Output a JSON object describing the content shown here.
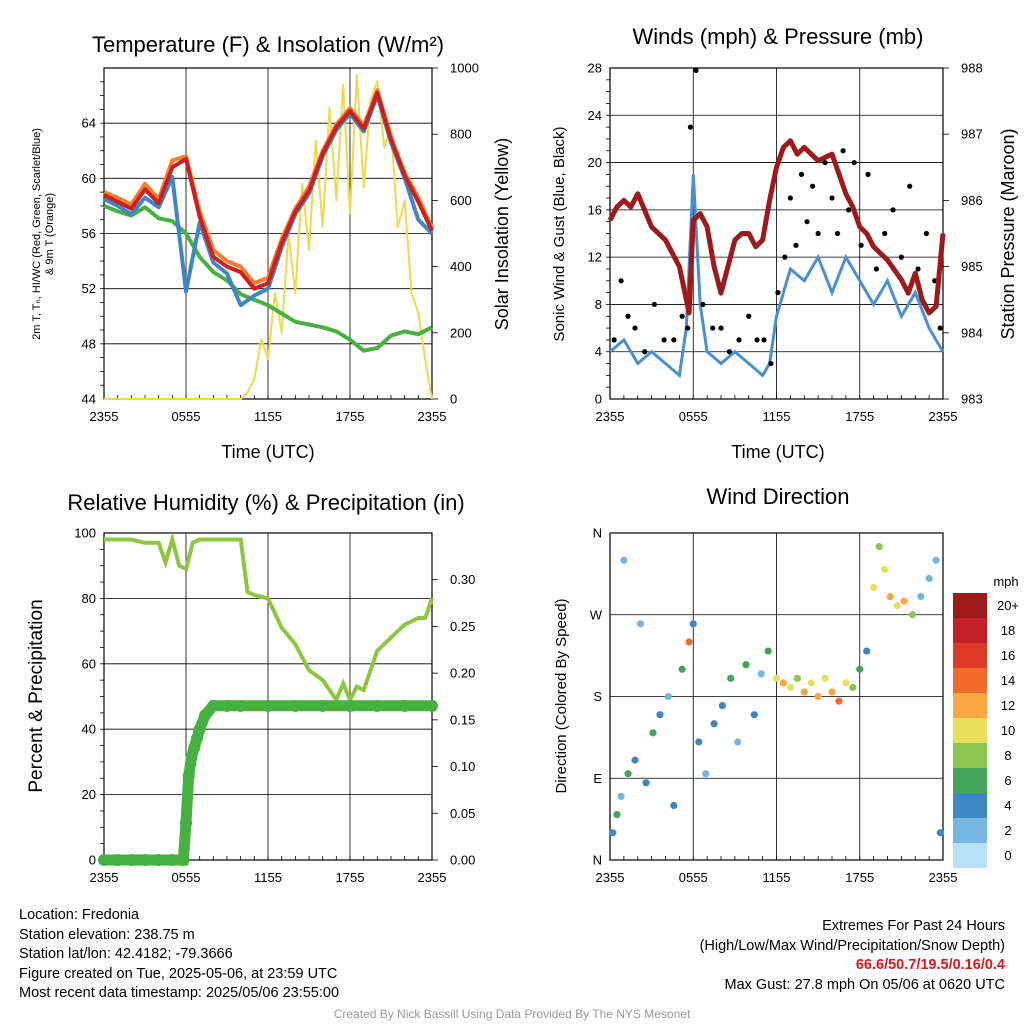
{
  "panels": {
    "temperature": {
      "title": "Temperature (F) & Insolation (W/m²)",
      "xlabel": "Time (UTC)",
      "ylabel_left_line1": "2m T, Tₙ, HI/WC (Red, Green, Scarlet/Blue)",
      "ylabel_left_line2": "& 9m T (Orange)",
      "ylabel_right": "Solar Insolation (Yellow)"
    },
    "winds": {
      "title": "Winds (mph) & Pressure (mb)",
      "xlabel": "Time (UTC)",
      "ylabel_left": "Sonic Wind & Gust (Blue, Black)",
      "ylabel_right": "Station Pressure (Maroon)"
    },
    "humidity": {
      "title": "Relative Humidity (%) & Precipitation (in)",
      "ylabel_left": "Percent & Precipitation"
    },
    "direction": {
      "title": "Wind Direction",
      "ylabel_left": "Direction (Colored By Speed)",
      "colorbar_title": "mph",
      "colorbar_labels": [
        "20+",
        "18",
        "16",
        "14",
        "12",
        "10",
        "8",
        "6",
        "4",
        "2",
        "0"
      ],
      "colorbar_colors": [
        "#9e1a1a",
        "#c4202a",
        "#de3a2a",
        "#f06a2c",
        "#f9a742",
        "#e8e05a",
        "#8cc652",
        "#46a35a",
        "#3f86c4",
        "#77b6e0",
        "#b7e1f6"
      ]
    }
  },
  "chart_data": [
    {
      "type": "line",
      "title": "Temperature (F) & Insolation (W/m²)",
      "xlabel": "Time (UTC)",
      "x_ticks": [
        "2355",
        "0555",
        "1155",
        "1755",
        "2355"
      ],
      "xlim": [
        0,
        24
      ],
      "ylim": [
        44,
        68
      ],
      "y_ticks": [
        44,
        48,
        52,
        56,
        60,
        64
      ],
      "y2lim": [
        0,
        1000
      ],
      "y2_ticks": [
        0,
        200,
        400,
        600,
        800,
        1000
      ],
      "grid": true,
      "series": [
        {
          "color": "#cc2020",
          "x": [
            0,
            1,
            2,
            3,
            4,
            5,
            6,
            7,
            8,
            9,
            10,
            11,
            12,
            13,
            14,
            15,
            16,
            17,
            18,
            19,
            20,
            21,
            22,
            23,
            24
          ],
          "values": [
            58.8,
            58.3,
            57.8,
            59.2,
            58.2,
            60.8,
            61.4,
            57.2,
            54.3,
            53.6,
            53.2,
            52.0,
            52.4,
            55.3,
            57.6,
            59.1,
            61.8,
            63.7,
            64.9,
            63.6,
            66.2,
            62.8,
            60.2,
            58.3,
            56.2
          ]
        },
        {
          "color": "#f08030",
          "x": [
            0,
            1,
            2,
            3,
            4,
            5,
            6,
            7,
            8,
            9,
            10,
            11,
            12,
            13,
            14,
            15,
            16,
            17,
            18,
            19,
            20,
            21,
            22,
            23,
            24
          ],
          "values": [
            59.0,
            58.6,
            58.1,
            59.6,
            58.5,
            61.3,
            61.6,
            57.6,
            54.8,
            54.0,
            53.6,
            52.4,
            52.8,
            55.6,
            57.8,
            59.4,
            62.0,
            63.9,
            65.1,
            63.8,
            66.4,
            63.0,
            60.4,
            58.6,
            56.4
          ]
        },
        {
          "color": "#3f86c4",
          "x": [
            0,
            1,
            2,
            3,
            4,
            5,
            6,
            7,
            8,
            9,
            10,
            11,
            12,
            13,
            14,
            15,
            16,
            17,
            18,
            19,
            20,
            21,
            22,
            23,
            24
          ],
          "values": [
            58.5,
            58.0,
            57.4,
            58.6,
            57.9,
            60.1,
            51.8,
            56.8,
            53.9,
            53.1,
            50.8,
            51.5,
            52.0,
            55.0,
            57.4,
            58.9,
            61.6,
            63.5,
            64.7,
            63.4,
            66.0,
            62.6,
            60.0,
            57.0,
            56.0
          ]
        },
        {
          "color": "#46b040",
          "x": [
            0,
            1,
            2,
            3,
            4,
            5,
            6,
            7,
            8,
            9,
            10,
            11,
            12,
            13,
            14,
            15,
            16,
            17,
            18,
            19,
            20,
            21,
            22,
            23,
            24
          ],
          "values": [
            58.0,
            57.6,
            57.3,
            57.9,
            57.1,
            56.9,
            56.0,
            54.3,
            53.2,
            52.6,
            51.6,
            51.2,
            50.8,
            50.2,
            49.6,
            49.4,
            49.2,
            48.9,
            48.3,
            47.5,
            47.7,
            48.6,
            48.9,
            48.7,
            49.2
          ]
        },
        {
          "color": "#f0d850",
          "axis": "right",
          "x": [
            0,
            1,
            2,
            3,
            4,
            5,
            6,
            7,
            8,
            9,
            10,
            10.5,
            11,
            11.5,
            12,
            12.5,
            13,
            13.5,
            14,
            14.5,
            15,
            15.5,
            16,
            16.5,
            17,
            17.5,
            18,
            18.5,
            19,
            19.5,
            20,
            20.5,
            21,
            21.5,
            22,
            22.5,
            23,
            23.5,
            24
          ],
          "values": [
            0,
            0,
            0,
            0,
            0,
            0,
            0,
            0,
            0,
            0,
            0,
            20,
            60,
            180,
            120,
            320,
            200,
            500,
            320,
            650,
            450,
            780,
            520,
            880,
            600,
            950,
            560,
            980,
            640,
            900,
            960,
            760,
            820,
            520,
            600,
            320,
            260,
            120,
            0
          ]
        }
      ]
    },
    {
      "type": "line",
      "title": "Winds (mph) & Pressure (mb)",
      "xlabel": "Time (UTC)",
      "x_ticks": [
        "2355",
        "0555",
        "1155",
        "1755",
        "2355"
      ],
      "xlim": [
        0,
        24
      ],
      "ylim": [
        0,
        28
      ],
      "y_ticks": [
        0,
        4,
        8,
        12,
        16,
        20,
        24,
        28
      ],
      "y2lim": [
        983,
        988
      ],
      "y2_ticks": [
        983,
        984,
        985,
        986,
        987,
        988
      ],
      "grid": true,
      "series": [
        {
          "color": "#4a90d0",
          "x": [
            0,
            1,
            2,
            3,
            4,
            5,
            5.5,
            6,
            6.5,
            7,
            8,
            9,
            10,
            11,
            11.5,
            12,
            13,
            14,
            15,
            16,
            17,
            18,
            19,
            20,
            21,
            22,
            23,
            24
          ],
          "values": [
            4,
            5,
            3,
            4,
            3,
            2,
            6,
            19,
            8,
            4,
            3,
            4,
            3,
            2,
            3,
            7,
            11,
            10,
            12,
            9,
            12,
            10,
            8,
            10,
            7,
            9,
            6,
            4
          ]
        },
        {
          "color": "#000000",
          "type": "scatter",
          "x": [
            0.3,
            0.8,
            1.3,
            1.8,
            2.5,
            3.2,
            3.9,
            4.6,
            5.2,
            5.6,
            5.8,
            6.2,
            6.7,
            7.4,
            8.0,
            8.6,
            9.3,
            10.0,
            10.6,
            11.1,
            11.6,
            12.1,
            12.6,
            13.0,
            13.4,
            13.8,
            14.2,
            14.6,
            15.0,
            15.5,
            16.0,
            16.4,
            16.8,
            17.2,
            17.6,
            18.1,
            18.6,
            19.2,
            19.8,
            20.4,
            21.0,
            21.6,
            22.2,
            22.8,
            23.4,
            23.8
          ],
          "values": [
            5,
            10,
            7,
            6,
            4,
            8,
            5,
            5,
            7,
            6,
            23,
            27.8,
            8,
            6,
            6,
            4,
            5,
            7,
            5,
            5,
            3,
            9,
            12,
            17,
            13,
            19,
            15,
            18,
            14,
            20,
            17,
            14,
            21,
            16,
            20,
            13,
            19,
            11,
            14,
            16,
            12,
            18,
            11,
            14,
            10,
            6
          ]
        },
        {
          "color": "#9e1a1a",
          "axis": "right",
          "x": [
            0,
            0.5,
            1,
            1.5,
            2,
            3,
            4,
            5,
            5.7,
            6,
            6.5,
            7,
            7.5,
            8,
            8.5,
            9,
            9.5,
            10,
            10.5,
            11,
            11.5,
            12,
            12.5,
            13,
            13.5,
            14,
            15,
            16,
            17,
            17.5,
            18,
            18.5,
            19,
            20,
            21,
            21.5,
            22,
            22.5,
            23,
            23.5,
            24
          ],
          "values": [
            985.7,
            985.9,
            986.0,
            985.9,
            986.1,
            985.6,
            985.4,
            985.0,
            984.3,
            985.7,
            985.8,
            985.6,
            985.0,
            984.6,
            985.0,
            985.4,
            985.5,
            985.5,
            985.3,
            985.4,
            986.0,
            986.5,
            986.8,
            986.9,
            986.7,
            986.8,
            986.6,
            986.7,
            986.1,
            985.9,
            985.6,
            985.5,
            985.3,
            985.1,
            984.8,
            984.6,
            984.9,
            984.5,
            984.3,
            984.4,
            985.5
          ]
        }
      ]
    },
    {
      "type": "line",
      "title": "Relative Humidity (%) & Precipitation (in)",
      "x_ticks": [
        "2355",
        "0555",
        "1155",
        "1755",
        "2355"
      ],
      "xlim": [
        0,
        24
      ],
      "ylim": [
        0,
        100
      ],
      "y_ticks": [
        0,
        20,
        40,
        60,
        80,
        100
      ],
      "y2lim": [
        0,
        0.35
      ],
      "y2_ticks": [
        "0.00",
        "0.05",
        "0.10",
        "0.15",
        "0.20",
        "0.25",
        "0.30"
      ],
      "grid": true,
      "series": [
        {
          "color": "#8dc640",
          "x": [
            0,
            1,
            2,
            3,
            4,
            4.5,
            5,
            5.5,
            6,
            6.5,
            7,
            8,
            9,
            10,
            10.5,
            11,
            12,
            13,
            14,
            15,
            16,
            17,
            17.5,
            18,
            18.5,
            19,
            20,
            21,
            22,
            23,
            23.5,
            24
          ],
          "values": [
            98,
            98,
            98,
            97,
            97,
            91,
            98,
            90,
            89,
            97,
            98,
            98,
            98,
            98,
            82,
            81,
            80,
            71,
            66,
            58,
            55,
            49,
            54,
            49,
            53,
            52,
            64,
            68,
            72,
            74,
            74,
            80
          ]
        },
        {
          "color": "#46b040",
          "axis": "right",
          "x": [
            0,
            1,
            2,
            3,
            4,
            5,
            5.8,
            6,
            6.2,
            6.4,
            6.6,
            6.8,
            7,
            7.4,
            8,
            9,
            10,
            12,
            14,
            16,
            18,
            20,
            22,
            24
          ],
          "values": [
            0,
            0,
            0,
            0,
            0,
            0,
            0,
            0.04,
            0.09,
            0.11,
            0.12,
            0.13,
            0.14,
            0.155,
            0.165,
            0.165,
            0.165,
            0.165,
            0.165,
            0.165,
            0.165,
            0.165,
            0.165,
            0.165
          ]
        }
      ]
    },
    {
      "type": "scatter",
      "title": "Wind Direction",
      "x_ticks": [
        "2355",
        "0555",
        "1155",
        "1755",
        "2355"
      ],
      "xlim": [
        0,
        24
      ],
      "ylim": [
        0,
        360
      ],
      "y_ticks": [
        "N",
        "E",
        "S",
        "W",
        "N"
      ],
      "grid": true,
      "points": [
        {
          "x": 0.2,
          "y": 30,
          "speed": 4
        },
        {
          "x": 0.5,
          "y": 50,
          "speed": 6
        },
        {
          "x": 0.8,
          "y": 70,
          "speed": 2
        },
        {
          "x": 1.0,
          "y": 330,
          "speed": 2
        },
        {
          "x": 1.3,
          "y": 95,
          "speed": 6
        },
        {
          "x": 1.8,
          "y": 110,
          "speed": 4
        },
        {
          "x": 2.2,
          "y": 260,
          "speed": 2
        },
        {
          "x": 2.6,
          "y": 85,
          "speed": 4
        },
        {
          "x": 3.1,
          "y": 140,
          "speed": 6
        },
        {
          "x": 3.6,
          "y": 160,
          "speed": 4
        },
        {
          "x": 4.2,
          "y": 180,
          "speed": 2
        },
        {
          "x": 4.6,
          "y": 60,
          "speed": 4
        },
        {
          "x": 5.2,
          "y": 210,
          "speed": 6
        },
        {
          "x": 5.7,
          "y": 240,
          "speed": 14
        },
        {
          "x": 6.0,
          "y": 260,
          "speed": 4
        },
        {
          "x": 6.4,
          "y": 130,
          "speed": 4
        },
        {
          "x": 6.9,
          "y": 95,
          "speed": 2
        },
        {
          "x": 7.5,
          "y": 150,
          "speed": 4
        },
        {
          "x": 8.1,
          "y": 170,
          "speed": 4
        },
        {
          "x": 8.7,
          "y": 200,
          "speed": 6
        },
        {
          "x": 9.2,
          "y": 130,
          "speed": 2
        },
        {
          "x": 9.8,
          "y": 215,
          "speed": 6
        },
        {
          "x": 10.4,
          "y": 160,
          "speed": 4
        },
        {
          "x": 10.9,
          "y": 205,
          "speed": 2
        },
        {
          "x": 11.4,
          "y": 230,
          "speed": 6
        },
        {
          "x": 12.0,
          "y": 200,
          "speed": 10
        },
        {
          "x": 12.5,
          "y": 195,
          "speed": 12
        },
        {
          "x": 13.0,
          "y": 190,
          "speed": 10
        },
        {
          "x": 13.5,
          "y": 200,
          "speed": 8
        },
        {
          "x": 14.0,
          "y": 185,
          "speed": 12
        },
        {
          "x": 14.5,
          "y": 195,
          "speed": 10
        },
        {
          "x": 15.0,
          "y": 180,
          "speed": 12
        },
        {
          "x": 15.5,
          "y": 200,
          "speed": 10
        },
        {
          "x": 16.0,
          "y": 185,
          "speed": 12
        },
        {
          "x": 16.5,
          "y": 175,
          "speed": 14
        },
        {
          "x": 17.0,
          "y": 195,
          "speed": 10
        },
        {
          "x": 17.5,
          "y": 190,
          "speed": 8
        },
        {
          "x": 18.0,
          "y": 210,
          "speed": 6
        },
        {
          "x": 18.5,
          "y": 230,
          "speed": 4
        },
        {
          "x": 19.0,
          "y": 300,
          "speed": 10
        },
        {
          "x": 19.4,
          "y": 345,
          "speed": 8
        },
        {
          "x": 19.8,
          "y": 320,
          "speed": 10
        },
        {
          "x": 20.2,
          "y": 290,
          "speed": 12
        },
        {
          "x": 20.7,
          "y": 280,
          "speed": 10
        },
        {
          "x": 21.2,
          "y": 285,
          "speed": 12
        },
        {
          "x": 21.8,
          "y": 270,
          "speed": 8
        },
        {
          "x": 22.4,
          "y": 290,
          "speed": 2
        },
        {
          "x": 23.0,
          "y": 310,
          "speed": 2
        },
        {
          "x": 23.5,
          "y": 330,
          "speed": 2
        },
        {
          "x": 23.8,
          "y": 30,
          "speed": 4
        }
      ]
    }
  ],
  "footer_left": {
    "location": "Location: Fredonia",
    "elevation": "Station elevation: 238.75 m",
    "latlon": "Station lat/lon: 42.4182; -79.3666",
    "created": "Figure created on Tue, 2025-05-06, at 23:59 UTC",
    "recent": "Most recent data timestamp: 2025/05/06 23:55:00"
  },
  "footer_right": {
    "line1": "Extremes For Past 24 Hours",
    "line2": "(High/Low/Max Wind/Precipitation/Snow Depth)",
    "values": "66.6/50.7/19.5/0.16/0.4",
    "gust": "Max Gust: 27.8 mph On 05/06 at 0620 UTC"
  },
  "credit": "Created By Nick Bassill Using Data Provided By The NYS Mesonet"
}
